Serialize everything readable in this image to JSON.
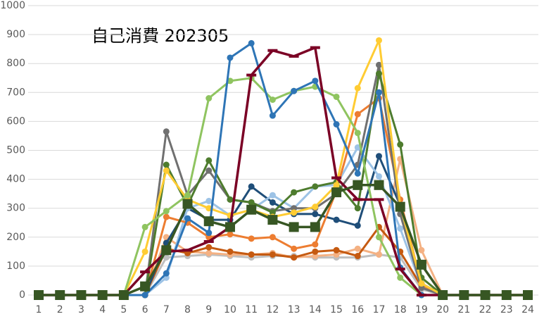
{
  "chart_data": {
    "type": "line",
    "title": "自己消費 202305",
    "categories": [
      "1",
      "2",
      "3",
      "4",
      "5",
      "6",
      "7",
      "8",
      "9",
      "10",
      "11",
      "12",
      "13",
      "14",
      "15",
      "16",
      "17",
      "18",
      "19",
      "20",
      "21",
      "22",
      "23",
      "24"
    ],
    "ylim": [
      0,
      1000
    ],
    "yticks": [
      0,
      100,
      200,
      300,
      400,
      500,
      600,
      700,
      800,
      900,
      1000
    ],
    "grid": true,
    "series": [
      {
        "color": "#bfbfbf",
        "marker": "circle",
        "values": [
          0,
          0,
          0,
          0,
          0,
          0,
          130,
          135,
          140,
          135,
          130,
          135,
          135,
          130,
          130,
          130,
          140,
          130,
          20,
          0,
          0,
          0,
          0,
          0
        ]
      },
      {
        "color": "#f4b183",
        "marker": "circle",
        "values": [
          0,
          0,
          0,
          0,
          0,
          0,
          200,
          150,
          145,
          140,
          140,
          145,
          130,
          135,
          140,
          160,
          140,
          470,
          155,
          0,
          0,
          0,
          0,
          0
        ]
      },
      {
        "color": "#c55a11",
        "marker": "circle",
        "values": [
          0,
          0,
          0,
          0,
          0,
          0,
          160,
          145,
          165,
          150,
          140,
          140,
          130,
          150,
          155,
          135,
          235,
          150,
          30,
          0,
          0,
          0,
          0,
          0
        ]
      },
      {
        "color": "#1f4e79",
        "marker": "circle",
        "values": [
          0,
          0,
          0,
          0,
          0,
          0,
          180,
          300,
          260,
          260,
          375,
          320,
          280,
          280,
          260,
          240,
          480,
          310,
          40,
          0,
          0,
          0,
          0,
          0
        ]
      },
      {
        "color": "#9dc3e6",
        "marker": "circle",
        "values": [
          0,
          0,
          0,
          0,
          0,
          0,
          60,
          300,
          325,
          275,
          295,
          345,
          300,
          375,
          380,
          510,
          410,
          230,
          30,
          0,
          0,
          0,
          0,
          0
        ]
      },
      {
        "color": "#ed7d31",
        "marker": "circle",
        "values": [
          0,
          0,
          0,
          0,
          0,
          0,
          270,
          250,
          200,
          210,
          195,
          200,
          160,
          175,
          360,
          625,
          680,
          330,
          35,
          0,
          0,
          0,
          0,
          0
        ]
      },
      {
        "color": "#707070",
        "marker": "circle",
        "values": [
          0,
          0,
          0,
          0,
          0,
          0,
          565,
          345,
          430,
          330,
          320,
          290,
          300,
          300,
          350,
          450,
          795,
          280,
          25,
          0,
          0,
          0,
          0,
          0
        ]
      },
      {
        "color": "#4e7c2e",
        "marker": "circle",
        "values": [
          0,
          0,
          0,
          0,
          0,
          0,
          450,
          310,
          465,
          330,
          320,
          285,
          355,
          375,
          390,
          300,
          765,
          520,
          60,
          0,
          0,
          0,
          0,
          0
        ]
      },
      {
        "color": "#ffcc33",
        "marker": "circle",
        "values": [
          0,
          0,
          0,
          0,
          0,
          150,
          430,
          330,
          300,
          275,
          295,
          270,
          285,
          305,
          380,
          715,
          880,
          310,
          40,
          0,
          0,
          0,
          0,
          0
        ]
      },
      {
        "color": "#8fc460",
        "marker": "circle",
        "values": [
          0,
          0,
          0,
          0,
          0,
          235,
          290,
          345,
          680,
          740,
          750,
          675,
          705,
          720,
          685,
          560,
          200,
          60,
          0,
          0,
          0,
          0,
          0,
          0
        ]
      },
      {
        "color": "#2e75b6",
        "marker": "circle",
        "values": [
          0,
          0,
          0,
          0,
          0,
          0,
          75,
          265,
          215,
          820,
          870,
          620,
          705,
          740,
          590,
          420,
          700,
          95,
          0,
          0,
          0,
          0,
          0,
          0
        ]
      },
      {
        "color": "#7b0025",
        "marker": "dash",
        "values": [
          0,
          0,
          0,
          0,
          0,
          80,
          150,
          155,
          185,
          235,
          760,
          845,
          825,
          855,
          405,
          330,
          330,
          90,
          0,
          0,
          0,
          0,
          0,
          0
        ]
      },
      {
        "color": "#375623",
        "marker": "square",
        "values": [
          0,
          0,
          0,
          0,
          0,
          30,
          155,
          315,
          255,
          235,
          295,
          260,
          235,
          235,
          355,
          380,
          380,
          305,
          105,
          0,
          0,
          0,
          0,
          0
        ]
      }
    ]
  }
}
